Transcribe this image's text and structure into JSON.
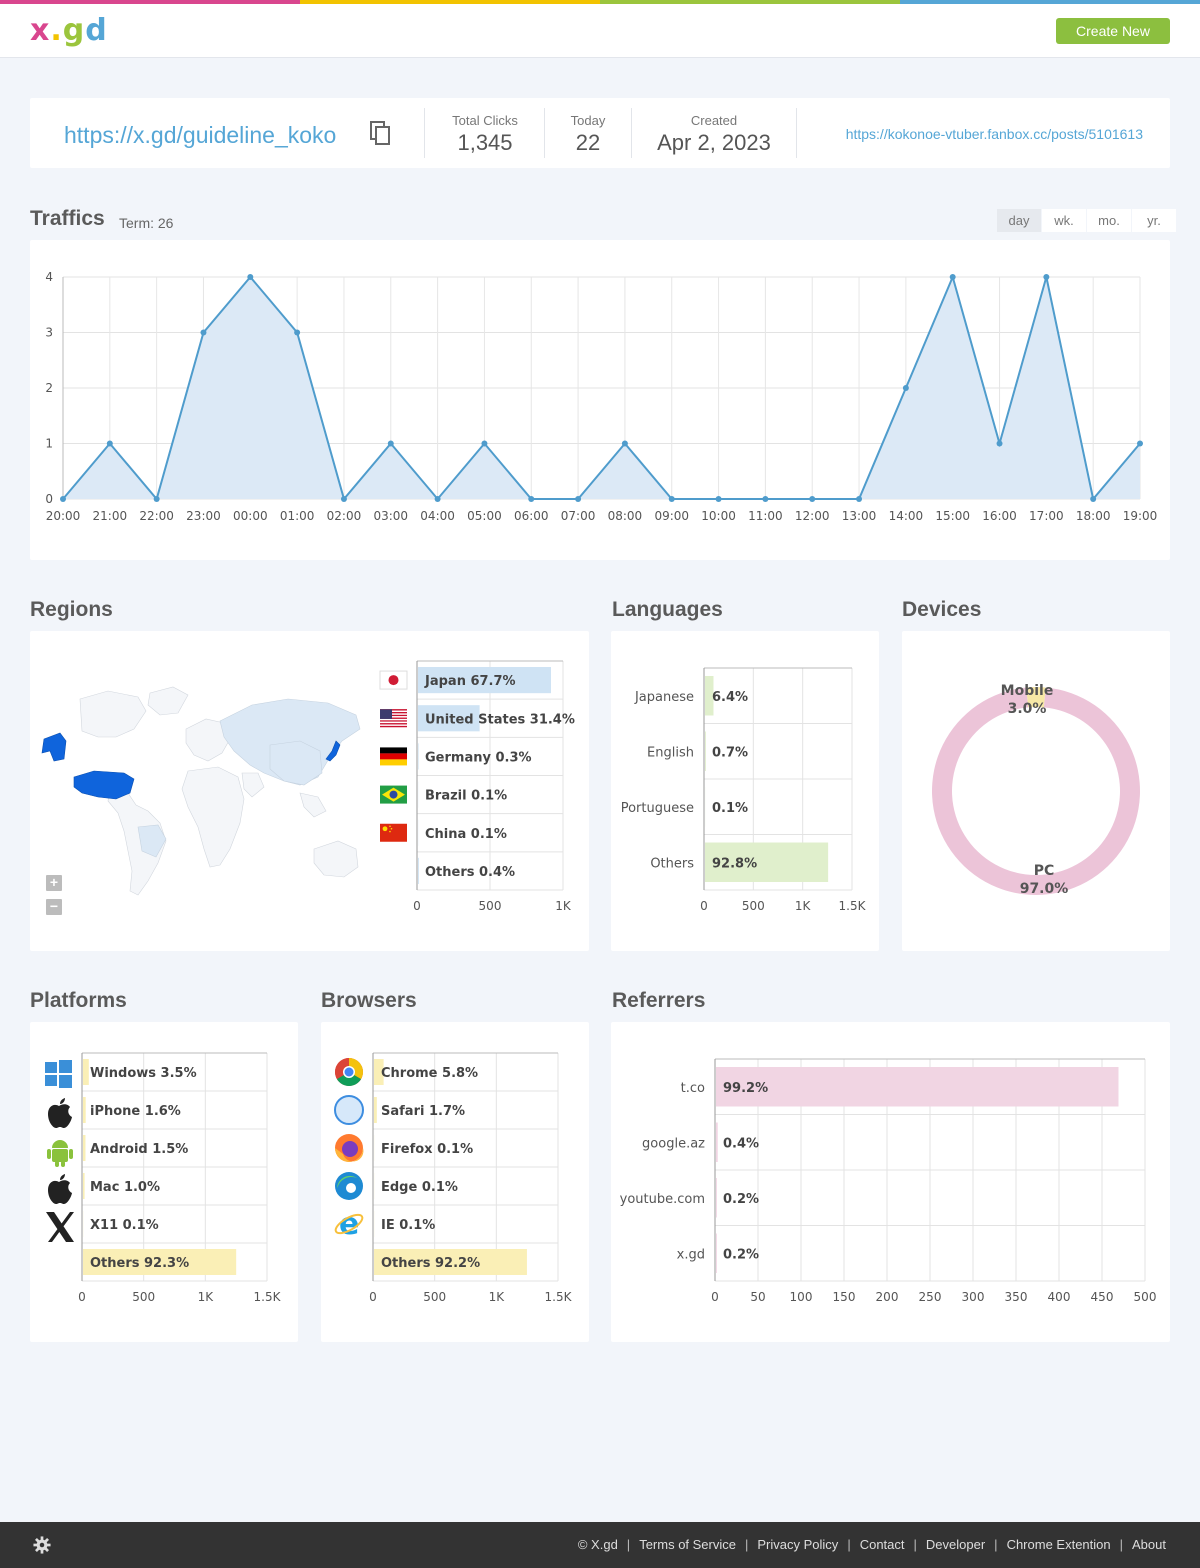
{
  "brand": {
    "logo_x": "x",
    "logo_dot": ".",
    "logo_gd": "gd",
    "colors": {
      "x": "#d9468e",
      "dot": "#f2c300",
      "g": "#9bc53d",
      "d": "#55a6d6"
    }
  },
  "header": {
    "create_label": "Create New"
  },
  "summary": {
    "short_url": "https://x.gd/guideline_koko",
    "total_clicks_label": "Total Clicks",
    "total_clicks": "1,345",
    "today_label": "Today",
    "today": "22",
    "created_label": "Created",
    "created": "Apr 2, 2023",
    "destination": "https://kokonoe-vtuber.fanbox.cc/posts/5101613"
  },
  "traffics": {
    "title": "Traffics",
    "term": "Term: 26",
    "tabs": [
      "day",
      "wk.",
      "mo.",
      "yr."
    ],
    "active_tab": "day"
  },
  "chart_data": [
    {
      "type": "area",
      "x": [
        "20:00",
        "21:00",
        "22:00",
        "23:00",
        "00:00",
        "01:00",
        "02:00",
        "03:00",
        "04:00",
        "05:00",
        "06:00",
        "07:00",
        "08:00",
        "09:00",
        "10:00",
        "11:00",
        "12:00",
        "13:00",
        "14:00",
        "15:00",
        "16:00",
        "17:00",
        "18:00",
        "19:00"
      ],
      "values": [
        0,
        1,
        0,
        3,
        4,
        3,
        0,
        1,
        0,
        1,
        0,
        0,
        1,
        0,
        0,
        0,
        0,
        0,
        2,
        4,
        1,
        4,
        0,
        1
      ],
      "ylim": [
        0,
        4
      ],
      "yticks": [
        0,
        1,
        2,
        3,
        4
      ],
      "grid": true,
      "color": "#4f9ccc",
      "fill": "#dce9f6"
    },
    {
      "type": "bar",
      "title": "Regions",
      "categories": [
        "Japan",
        "United States",
        "Germany",
        "Brazil",
        "China",
        "Others"
      ],
      "values": [
        911,
        422,
        4,
        1,
        1,
        6
      ],
      "labels": [
        "Japan  67.7%",
        "United States  31.4%",
        "Germany  0.3%",
        "Brazil  0.1%",
        "China  0.1%",
        "Others  0.4%"
      ],
      "xticks": [
        "0",
        "500",
        "1K"
      ],
      "xmax": 1000,
      "color": "#cfe3f4"
    },
    {
      "type": "bar",
      "title": "Languages",
      "categories": [
        "Japanese",
        "English",
        "Portuguese",
        "Others"
      ],
      "values": [
        86,
        9,
        1,
        1248
      ],
      "labels": [
        "6.4%",
        "0.7%",
        "0.1%",
        "92.8%"
      ],
      "xticks": [
        "0",
        "500",
        "1K",
        "1.5K"
      ],
      "xmax": 1500,
      "color": "#e0efcc"
    },
    {
      "type": "pie",
      "title": "Devices",
      "categories": [
        "Mobile",
        "PC"
      ],
      "values": [
        3.0,
        97.0
      ],
      "labels": [
        "Mobile\n3.0%",
        "PC\n97.0%"
      ],
      "colors": [
        "#f7e8a6",
        "#ecc4d8"
      ]
    },
    {
      "type": "bar",
      "title": "Platforms",
      "categories": [
        "Windows",
        "iPhone",
        "Android",
        "Mac",
        "X11",
        "Others"
      ],
      "values": [
        47,
        22,
        20,
        13,
        1,
        1242
      ],
      "labels": [
        "Windows  3.5%",
        "iPhone  1.6%",
        "Android  1.5%",
        "Mac  1.0%",
        "X11  0.1%",
        "Others  92.3%"
      ],
      "xticks": [
        "0",
        "500",
        "1K",
        "1.5K"
      ],
      "xmax": 1500,
      "color": "#faefb6"
    },
    {
      "type": "bar",
      "title": "Browsers",
      "categories": [
        "Chrome",
        "Safari",
        "Firefox",
        "Edge",
        "IE",
        "Others"
      ],
      "values": [
        78,
        23,
        1,
        1,
        1,
        1240
      ],
      "labels": [
        "Chrome  5.8%",
        "Safari  1.7%",
        "Firefox  0.1%",
        "Edge  0.1%",
        "IE  0.1%",
        "Others  92.2%"
      ],
      "xticks": [
        "0",
        "500",
        "1K",
        "1.5K"
      ],
      "xmax": 1500,
      "color": "#faefb6"
    },
    {
      "type": "bar",
      "title": "Referrers",
      "categories": [
        "t.co",
        "google.az",
        "youtube.com",
        "x.gd"
      ],
      "values": [
        468,
        2,
        1,
        1
      ],
      "labels": [
        "99.2%",
        "0.4%",
        "0.2%",
        "0.2%"
      ],
      "xticks": [
        "0",
        "50",
        "100",
        "150",
        "200",
        "250",
        "300",
        "350",
        "400",
        "450",
        "500"
      ],
      "xmax": 500,
      "color": "#f1d5e3"
    }
  ],
  "footer": {
    "links": [
      "© X.gd",
      "Terms of Service",
      "Privacy Policy",
      "Contact",
      "Developer",
      "Chrome Extention",
      "About"
    ]
  },
  "map": {
    "zoom_in": "+",
    "zoom_out": "−"
  }
}
